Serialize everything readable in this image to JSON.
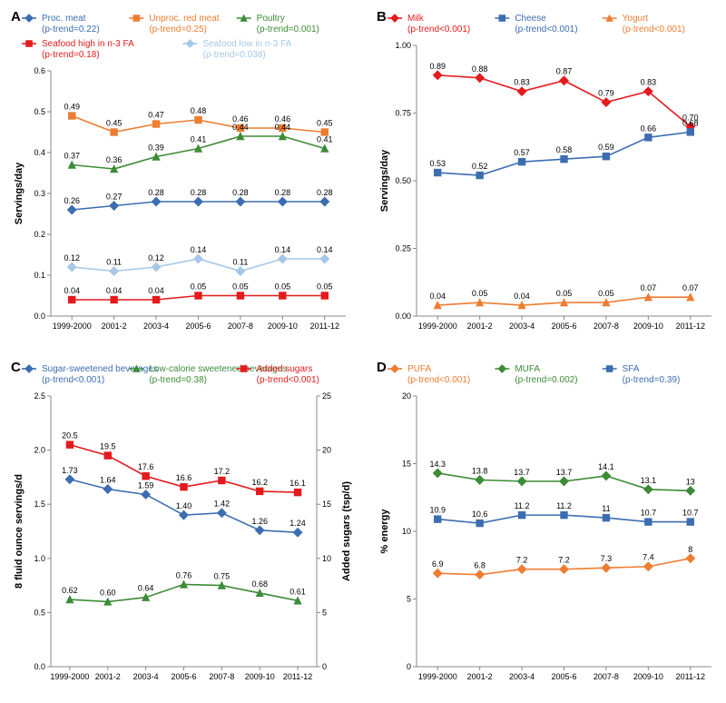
{
  "x_categories": [
    "1999-2000",
    "2001-2",
    "2003-4",
    "2005-6",
    "2007-8",
    "2009-10",
    "2011-12"
  ],
  "panelA": {
    "letter": "A",
    "ylabel": "Servings/day",
    "ymin": 0.0,
    "ymax": 0.6,
    "ystep": 0.1,
    "decimals": 1,
    "series": [
      {
        "name": "Proc. meat",
        "ptrend": "(p-trend=0.22)",
        "color": "#3c6db0",
        "marker": "diamond",
        "values": [
          0.26,
          0.27,
          0.28,
          0.28,
          0.28,
          0.28,
          0.28
        ]
      },
      {
        "name": "Unproc. red meat",
        "ptrend": "(p-trend=0.25)",
        "color": "#ed7d31",
        "marker": "square",
        "values": [
          0.49,
          0.45,
          0.47,
          0.48,
          0.46,
          0.46,
          0.45
        ]
      },
      {
        "name": "Poultry",
        "ptrend": "(p-trend=0.001)",
        "color": "#3d8b37",
        "marker": "triangle",
        "values": [
          0.37,
          0.36,
          0.39,
          0.41,
          0.44,
          0.44,
          0.41
        ]
      },
      {
        "name": "Seafood high in n-3 FA",
        "ptrend": "(p-trend=0.18)",
        "color": "#e41a1c",
        "marker": "square",
        "values": [
          0.04,
          0.04,
          0.04,
          0.05,
          0.05,
          0.05,
          0.05
        ]
      },
      {
        "name": "Seafood low in n-3 FA",
        "ptrend": "(p-trend=0.038)",
        "color": "#a6c8e6",
        "marker": "diamond",
        "values": [
          0.12,
          0.11,
          0.12,
          0.14,
          0.11,
          0.14,
          0.14
        ]
      }
    ],
    "legend_rows": [
      [
        0,
        1,
        2
      ],
      [
        3,
        4
      ]
    ]
  },
  "panelB": {
    "letter": "B",
    "ylabel": "Servings/day",
    "ymin": 0.0,
    "ymax": 1.0,
    "ystep": 0.25,
    "decimals": 2,
    "series": [
      {
        "name": "Milk",
        "ptrend": "(p-trend<0.001)",
        "color": "#e41a1c",
        "marker": "diamond",
        "values": [
          0.89,
          0.88,
          0.83,
          0.87,
          0.79,
          0.83,
          0.7
        ]
      },
      {
        "name": "Cheese",
        "ptrend": "(p-trend<0.001)",
        "color": "#3c6db0",
        "marker": "square",
        "values": [
          0.53,
          0.52,
          0.57,
          0.58,
          0.59,
          0.66,
          0.68
        ]
      },
      {
        "name": "Yogurt",
        "ptrend": "(p-trend<0.001)",
        "color": "#ed7d31",
        "marker": "triangle",
        "values": [
          0.04,
          0.05,
          0.04,
          0.05,
          0.05,
          0.07,
          0.07
        ]
      }
    ],
    "legend_rows": [
      [
        0,
        1,
        2
      ]
    ]
  },
  "panelC": {
    "letter": "C",
    "ylabel": "8 fluid ounce servings/d",
    "ylabel2": "Added sugars (tsp/d)",
    "ymin": 0.0,
    "ymax": 2.5,
    "ystep": 0.5,
    "y2min": 0,
    "y2max": 25,
    "y2step": 5,
    "decimals": 1,
    "series": [
      {
        "name": "Sugar-sweetened beverages",
        "ptrend": "(p-trend<0.001)",
        "color": "#3c6db0",
        "marker": "diamond",
        "axis": "left",
        "values": [
          1.73,
          1.64,
          1.59,
          1.4,
          1.42,
          1.26,
          1.24
        ]
      },
      {
        "name": "Low-calorie sweetened beverages",
        "ptrend": "(p-trend=0.38)",
        "color": "#3d8b37",
        "marker": "triangle",
        "axis": "left",
        "values": [
          0.62,
          0.6,
          0.64,
          0.76,
          0.75,
          0.68,
          0.61
        ]
      },
      {
        "name": "Added sugars",
        "ptrend": "(p-trend<0.001)",
        "color": "#e41a1c",
        "marker": "square",
        "axis": "right",
        "values": [
          20.5,
          19.5,
          17.6,
          16.6,
          17.2,
          16.2,
          16.1
        ]
      }
    ],
    "legend_rows": [
      [
        0,
        1,
        2
      ]
    ]
  },
  "panelD": {
    "letter": "D",
    "ylabel": "% energy",
    "ymin": 0,
    "ymax": 20,
    "ystep": 5,
    "decimals": 0,
    "series": [
      {
        "name": "PUFA",
        "ptrend": "(p-trend<0.001)",
        "color": "#ed7d31",
        "marker": "diamond",
        "values": [
          6.9,
          6.8,
          7.2,
          7.2,
          7.3,
          7.4,
          8.0
        ]
      },
      {
        "name": "MUFA",
        "ptrend": "(p-trend=0.002)",
        "color": "#3d8b37",
        "marker": "diamond",
        "values": [
          14.3,
          13.8,
          13.7,
          13.7,
          14.1,
          13.1,
          13.0
        ]
      },
      {
        "name": "SFA",
        "ptrend": "(p-trend=0.39)",
        "color": "#3c6db0",
        "marker": "square",
        "values": [
          10.9,
          10.6,
          11.2,
          11.2,
          11.0,
          10.7,
          10.7
        ]
      }
    ],
    "legend_rows": [
      [
        0,
        1,
        2
      ]
    ]
  },
  "styling": {
    "plot_bg": "#ffffff",
    "axis_color": "#888888",
    "line_width": 1.6,
    "marker_size": 4.2,
    "point_label_fontsize": 9,
    "legend_fontsize": 10
  }
}
